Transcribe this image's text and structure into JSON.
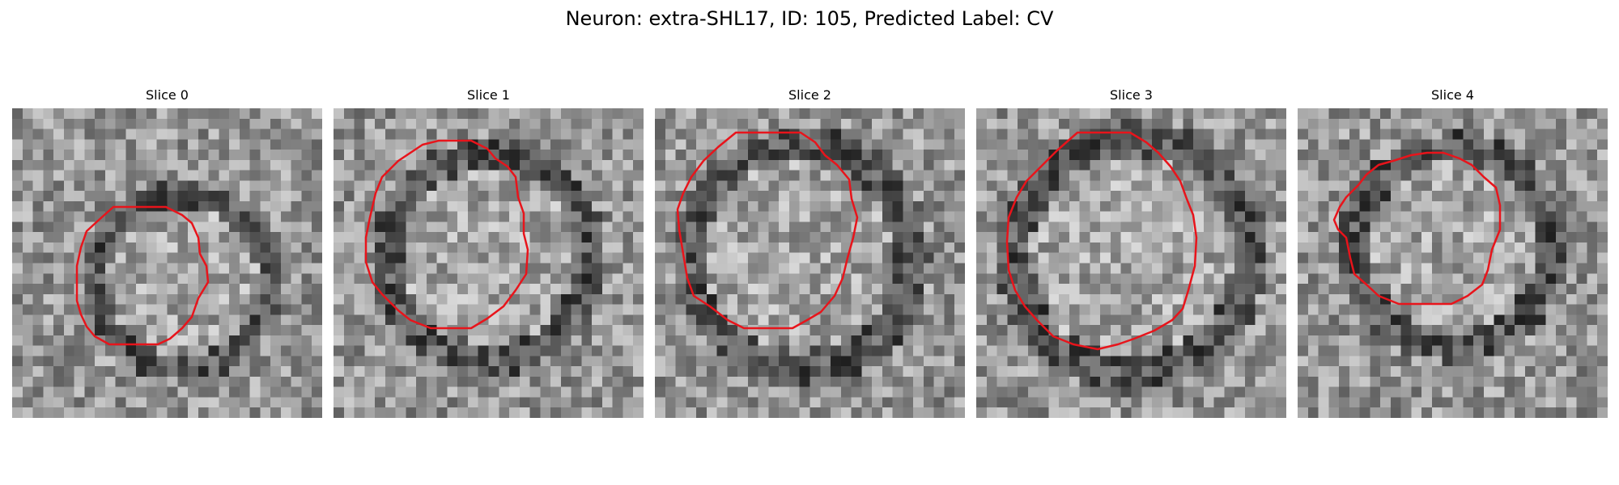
{
  "figure": {
    "title": "Neuron: extra-SHL17, ID: 105, Predicted Label: CV"
  },
  "colors": {
    "contour": "#e8141b",
    "background": "#ffffff"
  },
  "panels": [
    {
      "title": "Slice 0",
      "image_description": "grayscale noisy microscopy patch, dark ring around a lighter nucleus",
      "roi_outline": "red contour"
    },
    {
      "title": "Slice 1",
      "image_description": "grayscale noisy microscopy patch, dark ring around a lighter nucleus",
      "roi_outline": "red contour"
    },
    {
      "title": "Slice 2",
      "image_description": "grayscale noisy microscopy patch, dark ring around a lighter nucleus",
      "roi_outline": "red contour"
    },
    {
      "title": "Slice 3",
      "image_description": "grayscale noisy microscopy patch, dark ring around a lighter nucleus",
      "roi_outline": "red contour"
    },
    {
      "title": "Slice 4",
      "image_description": "grayscale noisy microscopy patch, dark ring around a lighter nucleus",
      "roi_outline": "red contour"
    }
  ]
}
